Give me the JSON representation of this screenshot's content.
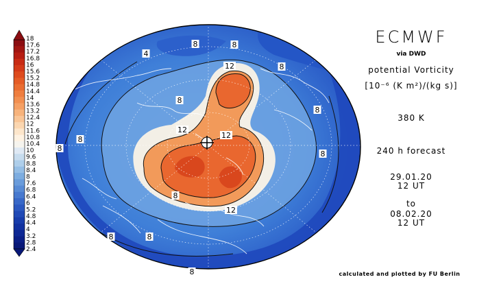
{
  "header": {
    "title": "ECMWF",
    "via": "via DWD",
    "quantity": "potential Vorticity",
    "units": "[10⁻⁶ (K m²)/(kg s)]",
    "level": "380 K",
    "forecast": "240 h forecast",
    "valid_from_date": "29.01.20",
    "valid_from_time": "12 UT",
    "to_label": "to",
    "valid_to_date": "08.02.20",
    "valid_to_time": "12 UT"
  },
  "credit": "calculated and plotted by FU Berlin",
  "colorbar": {
    "labels": [
      "18",
      "17.6",
      "17.2",
      "16.8",
      "16",
      "15.6",
      "15.2",
      "14.8",
      "14.4",
      "14",
      "13.6",
      "13.2",
      "12.4",
      "12",
      "11.6",
      "10.8",
      "10.4",
      "10",
      "9.6",
      "8.8",
      "8.4",
      "8",
      "7.6",
      "6.8",
      "6.4",
      "6",
      "5.2",
      "4.8",
      "4.4",
      "4",
      "3.2",
      "2.8",
      "2.4"
    ],
    "colors": [
      "#8b0d11",
      "#a11511",
      "#b61d12",
      "#c82b14",
      "#d43a18",
      "#de4b1e",
      "#e55c26",
      "#ea6d31",
      "#ef7e3f",
      "#f28f50",
      "#f5a064",
      "#f7b37c",
      "#f9c596",
      "#fbd6b0",
      "#fde6cb",
      "#fef2e2",
      "#f6f4ee",
      "#dfe9f4",
      "#c7dcee",
      "#aeceea",
      "#95bee5",
      "#7dade0",
      "#6a9cdb",
      "#588bd5",
      "#4779cf",
      "#3868c8",
      "#2b58c0",
      "#2049b6",
      "#173cab",
      "#1131a0",
      "#0d2794",
      "#0a1e86",
      "#081878"
    ]
  },
  "map_labels": [
    {
      "text": "4"
    },
    {
      "text": "8"
    },
    {
      "text": "8"
    },
    {
      "text": "12"
    },
    {
      "text": "8"
    },
    {
      "text": "8"
    },
    {
      "text": "8"
    },
    {
      "text": "12"
    },
    {
      "text": "12"
    },
    {
      "text": "8"
    },
    {
      "text": "8"
    },
    {
      "text": "8"
    },
    {
      "text": "8"
    },
    {
      "text": "12"
    },
    {
      "text": "8"
    },
    {
      "text": "8"
    },
    {
      "text": "8"
    }
  ]
}
